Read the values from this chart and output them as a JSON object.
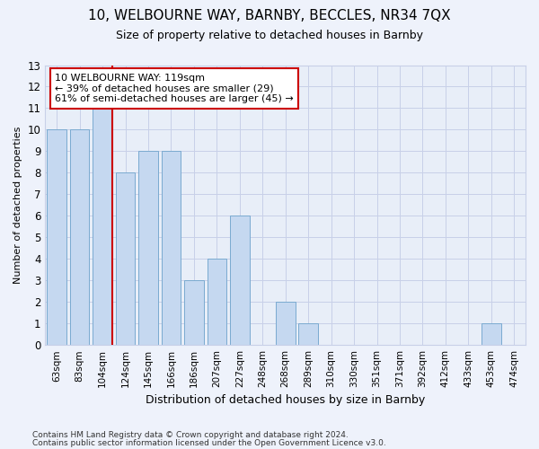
{
  "title1": "10, WELBOURNE WAY, BARNBY, BECCLES, NR34 7QX",
  "title2": "Size of property relative to detached houses in Barnby",
  "xlabel": "Distribution of detached houses by size in Barnby",
  "ylabel": "Number of detached properties",
  "categories": [
    "63sqm",
    "83sqm",
    "104sqm",
    "124sqm",
    "145sqm",
    "166sqm",
    "186sqm",
    "207sqm",
    "227sqm",
    "248sqm",
    "268sqm",
    "289sqm",
    "310sqm",
    "330sqm",
    "351sqm",
    "371sqm",
    "392sqm",
    "412sqm",
    "433sqm",
    "453sqm",
    "474sqm"
  ],
  "values": [
    10,
    10,
    11,
    8,
    9,
    9,
    3,
    4,
    6,
    0,
    2,
    1,
    0,
    0,
    0,
    0,
    0,
    0,
    0,
    1,
    0
  ],
  "bar_color": "#c5d8f0",
  "bar_edge_color": "#7aaad0",
  "vline_x_index": 2,
  "vline_color": "#cc0000",
  "annotation_line1": "10 WELBOURNE WAY: 119sqm",
  "annotation_line2": "← 39% of detached houses are smaller (29)",
  "annotation_line3": "61% of semi-detached houses are larger (45) →",
  "annotation_box_color": "white",
  "annotation_box_edge": "#cc0000",
  "ylim": [
    0,
    13
  ],
  "yticks": [
    0,
    1,
    2,
    3,
    4,
    5,
    6,
    7,
    8,
    9,
    10,
    11,
    12,
    13
  ],
  "footer1": "Contains HM Land Registry data © Crown copyright and database right 2024.",
  "footer2": "Contains public sector information licensed under the Open Government Licence v3.0.",
  "bg_color": "#eef2fb",
  "plot_bg_color": "#e8eef8",
  "grid_color": "#c8d0e8",
  "title1_fontsize": 11,
  "title2_fontsize": 9,
  "xlabel_fontsize": 9,
  "ylabel_fontsize": 8
}
